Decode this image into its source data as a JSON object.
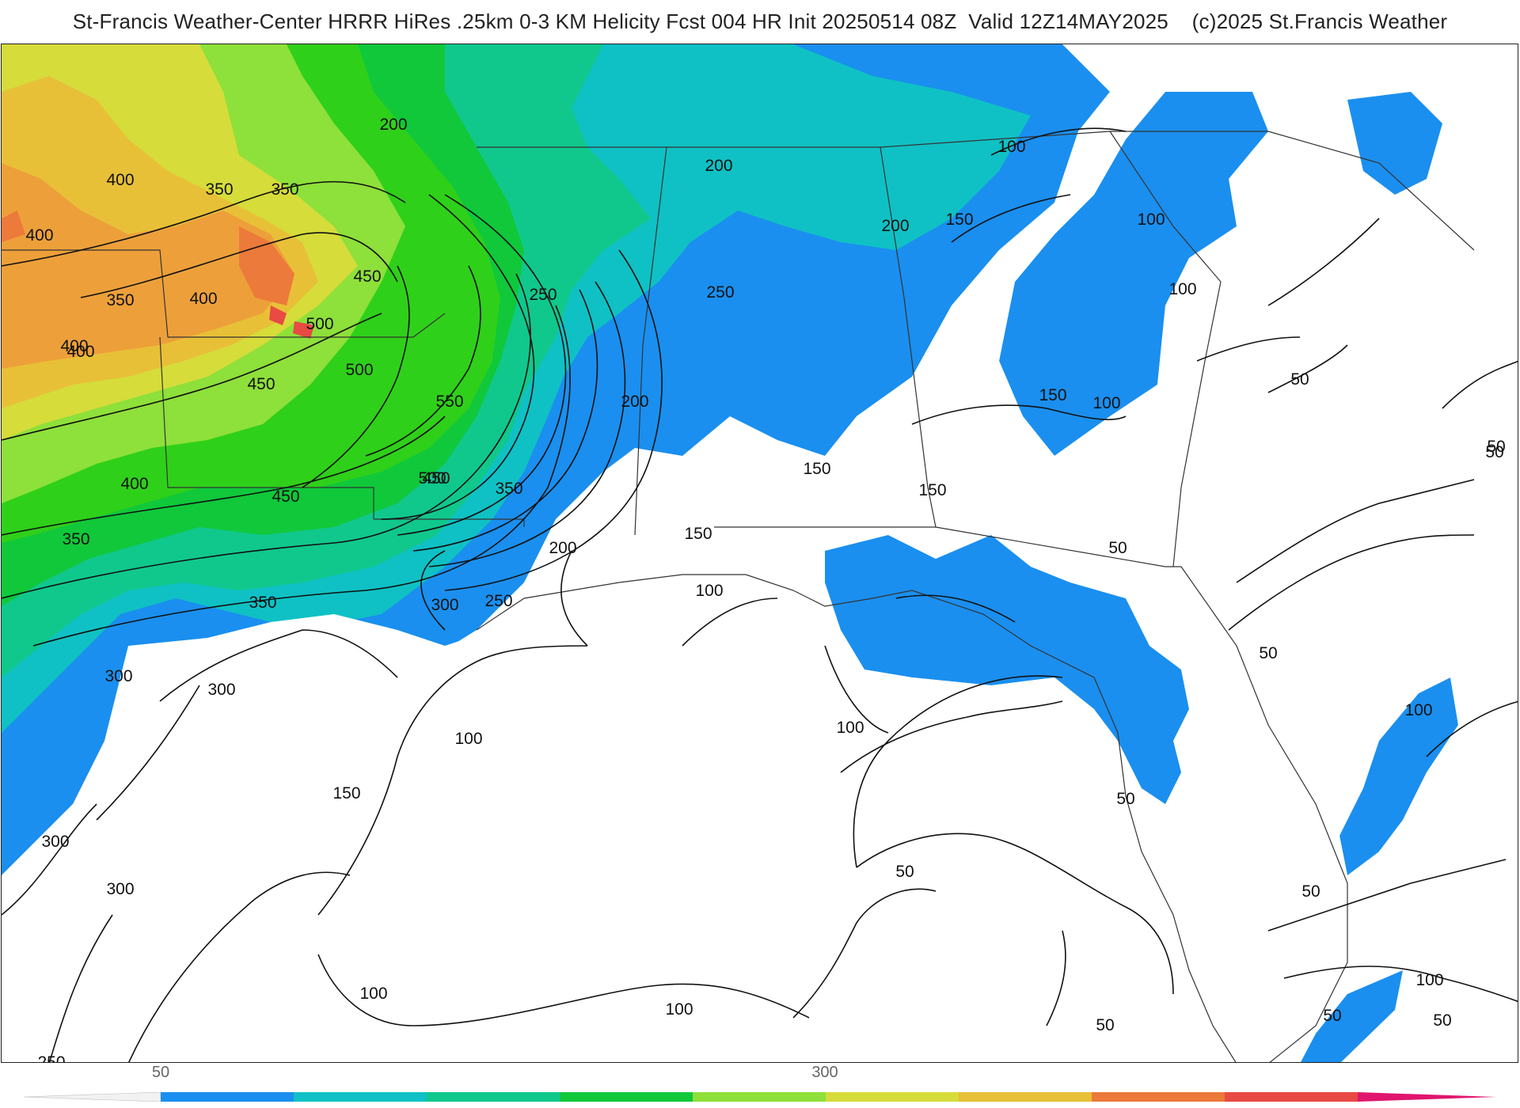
{
  "header": {
    "title": "St-Francis Weather-Center HRRR HiRes .25km 0-3 KM Helicity Fcst 004 HR Init 20250514 08Z  Valid 12Z14MAY2025    (c)2025 St.Francis Weather"
  },
  "colors": {
    "c50": "#1a8fef",
    "c100": "#15a9e6",
    "c150": "#0fc1c4",
    "c200": "#10c88c",
    "c250": "#10c83a",
    "c300": "#2fd01a",
    "c350": "#8ee03a",
    "c400": "#d6dc3a",
    "c450": "#e8c038",
    "c500": "#eda03a",
    "c550": "#ec7a3a",
    "c600": "#e84a44",
    "c700": "#e0156e"
  },
  "contour_labels": [
    {
      "text": "200"
    },
    {
      "text": "400"
    },
    {
      "text": "350"
    },
    {
      "text": "350"
    },
    {
      "text": "400"
    },
    {
      "text": "450"
    },
    {
      "text": "400"
    },
    {
      "text": "350"
    },
    {
      "text": "500"
    },
    {
      "text": "400"
    },
    {
      "text": "500"
    },
    {
      "text": "450"
    },
    {
      "text": "550"
    },
    {
      "text": "250"
    },
    {
      "text": "200"
    },
    {
      "text": "250"
    },
    {
      "text": "200"
    },
    {
      "text": "200"
    },
    {
      "text": "150"
    },
    {
      "text": "100"
    },
    {
      "text": "100"
    },
    {
      "text": "100"
    },
    {
      "text": "150"
    },
    {
      "text": "100"
    },
    {
      "text": "50"
    },
    {
      "text": "50"
    },
    {
      "text": "400"
    },
    {
      "text": "450"
    },
    {
      "text": "500"
    },
    {
      "text": "350"
    },
    {
      "text": "450"
    },
    {
      "text": "400"
    },
    {
      "text": "350"
    },
    {
      "text": "200"
    },
    {
      "text": "150"
    },
    {
      "text": "150"
    },
    {
      "text": "150"
    },
    {
      "text": "100"
    },
    {
      "text": "300"
    },
    {
      "text": "250"
    },
    {
      "text": "350"
    },
    {
      "text": "300"
    },
    {
      "text": "300"
    },
    {
      "text": "100"
    },
    {
      "text": "150"
    },
    {
      "text": "100"
    },
    {
      "text": "50"
    },
    {
      "text": "50"
    },
    {
      "text": "50"
    },
    {
      "text": "100"
    },
    {
      "text": "300"
    },
    {
      "text": "300"
    },
    {
      "text": "50"
    },
    {
      "text": "50"
    },
    {
      "text": "100"
    },
    {
      "text": "100"
    },
    {
      "text": "50"
    },
    {
      "text": "250"
    },
    {
      "text": "100"
    },
    {
      "text": "50"
    },
    {
      "text": "50"
    },
    {
      "text": "50"
    }
  ],
  "colorbar": {
    "ticks": [
      "50",
      "300"
    ]
  }
}
